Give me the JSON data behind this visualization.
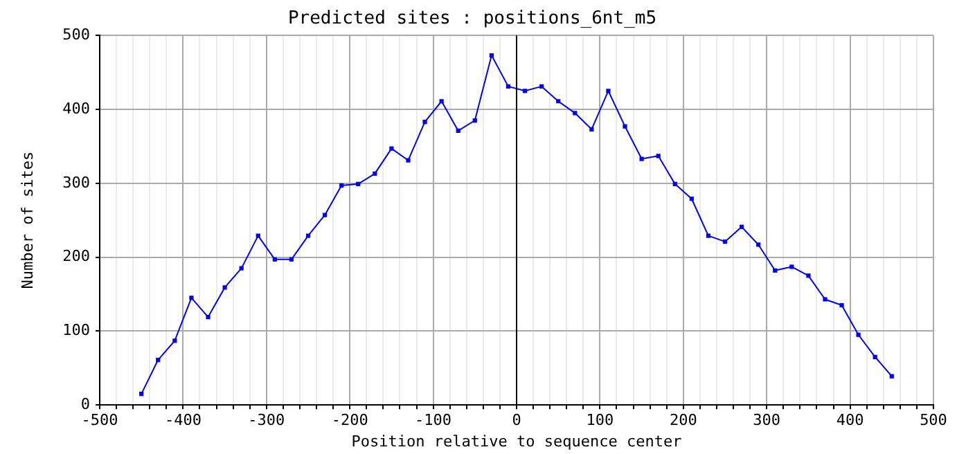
{
  "chart_data": {
    "type": "line",
    "title": "Predicted sites : positions_6nt_m5",
    "xlabel": "Position relative to sequence center",
    "ylabel": "Number of sites",
    "x": [
      -450,
      -430,
      -410,
      -390,
      -370,
      -350,
      -330,
      -310,
      -290,
      -270,
      -250,
      -230,
      -210,
      -190,
      -170,
      -150,
      -130,
      -110,
      -90,
      -70,
      -50,
      -30,
      -10,
      10,
      30,
      50,
      70,
      90,
      110,
      130,
      150,
      170,
      190,
      210,
      230,
      250,
      270,
      290,
      310,
      330,
      350,
      370,
      390,
      410,
      430,
      450
    ],
    "series": [
      {
        "color": "#0000ff",
        "values": [
          15,
          61,
          87,
          145,
          119,
          159,
          185,
          229,
          197,
          197,
          229,
          257,
          297,
          299,
          313,
          347,
          331,
          383,
          411,
          371,
          385,
          473,
          431,
          425,
          431,
          411,
          395,
          373,
          425,
          377,
          333,
          337,
          299,
          279,
          229,
          221,
          241,
          217,
          182,
          187,
          175,
          143,
          135,
          95,
          65,
          39
        ]
      }
    ],
    "xlim": [
      -500,
      500
    ],
    "ylim": [
      0,
      500
    ],
    "xticks": [
      -500,
      {
        "value": -480,
        "label": null
      },
      {
        "value": -460,
        "label": null
      },
      {
        "value": -440,
        "label": null
      },
      {
        "value": -420,
        "label": null
      },
      -400,
      {
        "value": -380,
        "label": null
      },
      {
        "value": -360,
        "label": null
      },
      {
        "value": -340,
        "label": null
      },
      {
        "value": -320,
        "label": null
      },
      -300,
      {
        "value": -280,
        "label": null
      },
      {
        "value": -260,
        "label": null
      },
      {
        "value": -240,
        "label": null
      },
      {
        "value": -220,
        "label": null
      },
      -200,
      {
        "value": -180,
        "label": null
      },
      {
        "value": -160,
        "label": null
      },
      {
        "value": -140,
        "label": null
      },
      {
        "value": -120,
        "label": null
      },
      -100,
      {
        "value": -80,
        "label": null
      },
      {
        "value": -60,
        "label": null
      },
      {
        "value": -40,
        "label": null
      },
      {
        "value": -20,
        "label": null
      },
      0,
      {
        "value": 20,
        "label": null
      },
      {
        "value": 40,
        "label": null
      },
      {
        "value": 60,
        "label": null
      },
      {
        "value": 80,
        "label": null
      },
      100,
      {
        "value": 120,
        "label": null
      },
      {
        "value": 140,
        "label": null
      },
      {
        "value": 160,
        "label": null
      },
      {
        "value": 180,
        "label": null
      },
      200,
      {
        "value": 220,
        "label": null
      },
      {
        "value": 240,
        "label": null
      },
      {
        "value": 260,
        "label": null
      },
      {
        "value": 280,
        "label": null
      },
      300,
      {
        "value": 320,
        "label": null
      },
      {
        "value": 340,
        "label": null
      },
      {
        "value": 360,
        "label": null
      },
      {
        "value": 380,
        "label": null
      },
      400,
      {
        "value": 420,
        "label": null
      },
      {
        "value": 440,
        "label": null
      },
      {
        "value": 460,
        "label": null
      },
      {
        "value": 480,
        "label": null
      },
      500
    ],
    "yticks": [
      0,
      100,
      200,
      300,
      400,
      500
    ],
    "grid": true,
    "marker": "square",
    "line_style": "solid",
    "ref_lines": [
      {
        "axis": "x",
        "value": 0,
        "color": "#000000"
      }
    ]
  }
}
